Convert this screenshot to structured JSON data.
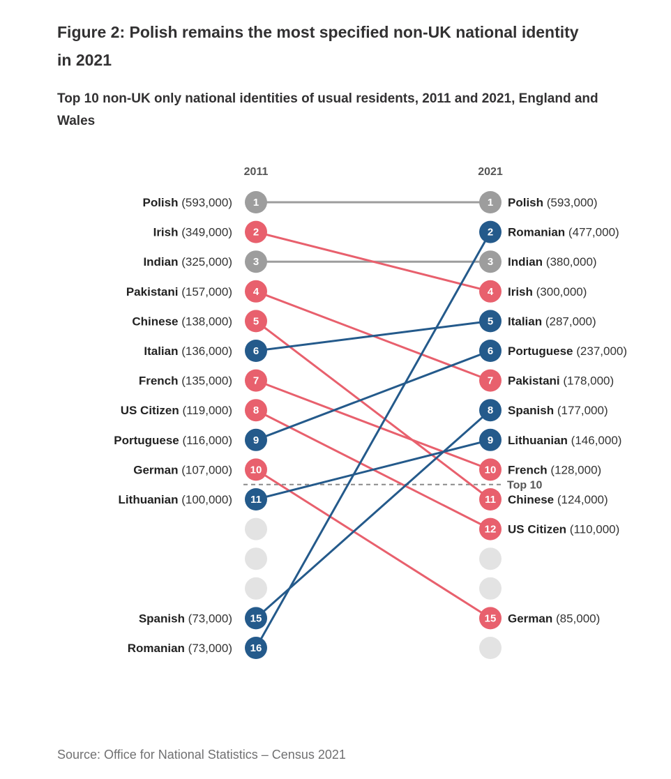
{
  "title": "Figure 2: Polish remains the most specified non-UK national identity in 2021",
  "subtitle": "Top 10 non-UK only national identities of usual residents, 2011 and 2021, England and Wales",
  "source": "Source: Office for National Statistics – Census 2021",
  "chart_data": {
    "type": "slope",
    "year_labels": [
      "2011",
      "2021"
    ],
    "top_label": "Top 10",
    "top_cutoff": 10,
    "max_rank": 16,
    "colors": {
      "same": "#9d9d9d",
      "fall": "#e8606d",
      "rise": "#245a8b",
      "empty": "#e3e3e3"
    },
    "series": [
      {
        "name": "Polish",
        "rank_2011": 1,
        "value_2011": "593,000",
        "rank_2021": 1,
        "value_2021": "593,000",
        "trend": "same"
      },
      {
        "name": "Irish",
        "rank_2011": 2,
        "value_2011": "349,000",
        "rank_2021": 4,
        "value_2021": "300,000",
        "trend": "fall"
      },
      {
        "name": "Indian",
        "rank_2011": 3,
        "value_2011": "325,000",
        "rank_2021": 3,
        "value_2021": "380,000",
        "trend": "same"
      },
      {
        "name": "Pakistani",
        "rank_2011": 4,
        "value_2011": "157,000",
        "rank_2021": 7,
        "value_2021": "178,000",
        "trend": "fall"
      },
      {
        "name": "Chinese",
        "rank_2011": 5,
        "value_2011": "138,000",
        "rank_2021": 11,
        "value_2021": "124,000",
        "trend": "fall"
      },
      {
        "name": "Italian",
        "rank_2011": 6,
        "value_2011": "136,000",
        "rank_2021": 5,
        "value_2021": "287,000",
        "trend": "rise"
      },
      {
        "name": "French",
        "rank_2011": 7,
        "value_2011": "135,000",
        "rank_2021": 10,
        "value_2021": "128,000",
        "trend": "fall"
      },
      {
        "name": "US Citizen",
        "rank_2011": 8,
        "value_2011": "119,000",
        "rank_2021": 12,
        "value_2021": "110,000",
        "trend": "fall"
      },
      {
        "name": "Portuguese",
        "rank_2011": 9,
        "value_2011": "116,000",
        "rank_2021": 6,
        "value_2021": "237,000",
        "trend": "rise"
      },
      {
        "name": "German",
        "rank_2011": 10,
        "value_2011": "107,000",
        "rank_2021": 15,
        "value_2021": "85,000",
        "trend": "fall"
      },
      {
        "name": "Lithuanian",
        "rank_2011": 11,
        "value_2011": "100,000",
        "rank_2021": 9,
        "value_2021": "146,000",
        "trend": "rise"
      },
      {
        "name": "Spanish",
        "rank_2011": 15,
        "value_2011": "73,000",
        "rank_2021": 8,
        "value_2021": "177,000",
        "trend": "rise"
      },
      {
        "name": "Romanian",
        "rank_2011": 16,
        "value_2011": "73,000",
        "rank_2021": 2,
        "value_2021": "477,000",
        "trend": "rise"
      }
    ]
  }
}
